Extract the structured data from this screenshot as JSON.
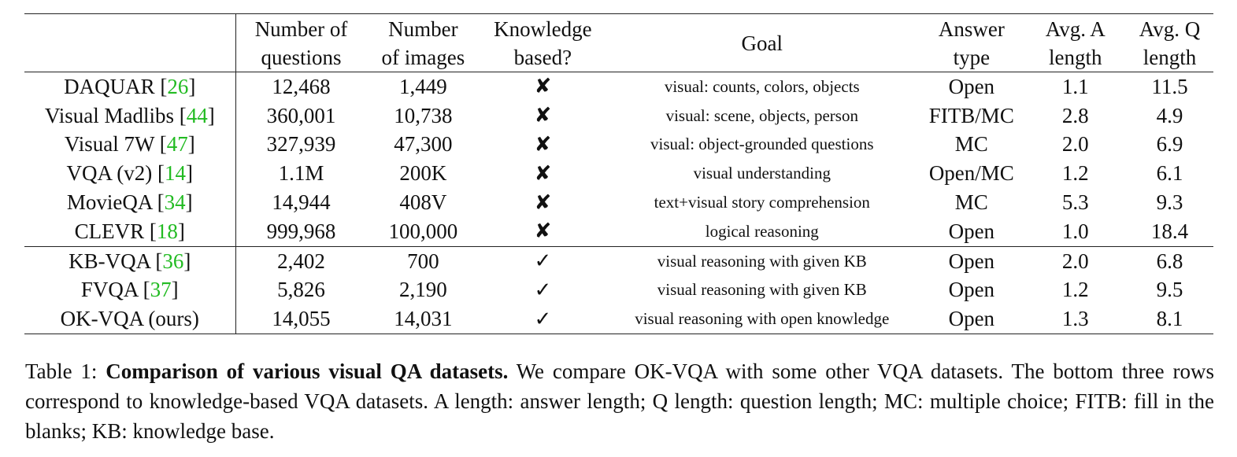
{
  "table": {
    "headers": [
      {
        "line1": "",
        "line2": ""
      },
      {
        "line1": "Number of",
        "line2": "questions"
      },
      {
        "line1": "Number",
        "line2": "of images"
      },
      {
        "line1": "Knowledge",
        "line2": "based?"
      },
      {
        "line1": "Goal",
        "line2": ""
      },
      {
        "line1": "Answer",
        "line2": "type"
      },
      {
        "line1": "Avg. A",
        "line2": "length"
      },
      {
        "line1": "Avg. Q",
        "line2": "length"
      }
    ],
    "rows": [
      {
        "dataset": "DAQUAR [",
        "ref": "26",
        "close": "]",
        "questions": "12,468",
        "images": "1,449",
        "kb": "✘",
        "goal": "visual: counts, colors, objects",
        "answer": "Open",
        "alen": "1.1",
        "qlen": "11.5"
      },
      {
        "dataset": "Visual Madlibs [",
        "ref": "44",
        "close": "]",
        "questions": "360,001",
        "images": "10,738",
        "kb": "✘",
        "goal": "visual: scene, objects, person",
        "answer": "FITB/MC",
        "alen": "2.8",
        "qlen": "4.9"
      },
      {
        "dataset": "Visual 7W [",
        "ref": "47",
        "close": "]",
        "questions": "327,939",
        "images": "47,300",
        "kb": "✘",
        "goal": "visual: object-grounded questions",
        "answer": "MC",
        "alen": "2.0",
        "qlen": "6.9"
      },
      {
        "dataset": "VQA (v2) [",
        "ref": "14",
        "close": "]",
        "questions": "1.1M",
        "images": "200K",
        "kb": "✘",
        "goal": "visual understanding",
        "answer": "Open/MC",
        "alen": "1.2",
        "qlen": "6.1"
      },
      {
        "dataset": "MovieQA [",
        "ref": "34",
        "close": "]",
        "questions": "14,944",
        "images": "408V",
        "kb": "✘",
        "goal": "text+visual story comprehension",
        "answer": "MC",
        "alen": "5.3",
        "qlen": "9.3"
      },
      {
        "dataset": "CLEVR [",
        "ref": "18",
        "close": "]",
        "questions": "999,968",
        "images": "100,000",
        "kb": "✘",
        "goal": "logical reasoning",
        "answer": "Open",
        "alen": "1.0",
        "qlen": "18.4"
      },
      {
        "dataset": "KB-VQA [",
        "ref": "36",
        "close": "]",
        "questions": "2,402",
        "images": "700",
        "kb": "✓",
        "goal": "visual reasoning with given KB",
        "answer": "Open",
        "alen": "2.0",
        "qlen": "6.8"
      },
      {
        "dataset": "FVQA [",
        "ref": "37",
        "close": "]",
        "questions": "5,826",
        "images": "2,190",
        "kb": "✓",
        "goal": "visual reasoning with given KB",
        "answer": "Open",
        "alen": "1.2",
        "qlen": "9.5"
      },
      {
        "dataset": "OK-VQA (ours)",
        "ref": "",
        "close": "",
        "questions": "14,055",
        "images": "14,031",
        "kb": "✓",
        "goal": "visual reasoning with open knowledge",
        "answer": "Open",
        "alen": "1.3",
        "qlen": "8.1"
      }
    ],
    "ref_color": "#22bb22"
  },
  "caption": {
    "label": "Table 1: ",
    "bold": "Comparison of various visual QA datasets.",
    "text": " We compare OK-VQA with some other VQA datasets. The bottom three rows correspond to knowledge-based VQA datasets. A length: answer length; Q length: question length; MC: multiple choice; FITB: fill in the blanks; KB: knowledge base."
  }
}
